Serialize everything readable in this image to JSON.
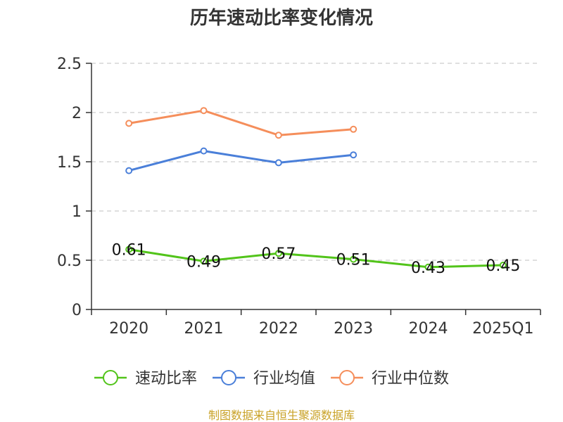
{
  "chart_data": {
    "type": "line",
    "title": "历年速动比率变化情况",
    "categories": [
      "2020",
      "2021",
      "2022",
      "2023",
      "2024",
      "2025Q1"
    ],
    "ylim": [
      0,
      2.5
    ],
    "yticks": [
      "0",
      "0.5",
      "1",
      "1.5",
      "2",
      "2.5"
    ],
    "grid": true,
    "legend_position": "bottom",
    "series": [
      {
        "name": "速动比率",
        "color": "#52c41a",
        "values": [
          0.61,
          0.49,
          0.57,
          0.51,
          0.43,
          0.45
        ],
        "labels": [
          "0.61",
          "0.49",
          "0.57",
          "0.51",
          "0.43",
          "0.45"
        ]
      },
      {
        "name": "行业均值",
        "color": "#4a7fd9",
        "values": [
          1.41,
          1.61,
          1.49,
          1.57,
          null,
          null
        ]
      },
      {
        "name": "行业中位数",
        "color": "#f58e5b",
        "values": [
          1.89,
          2.02,
          1.77,
          1.83,
          null,
          null
        ]
      }
    ],
    "source": "制图数据来自恒生聚源数据库"
  }
}
